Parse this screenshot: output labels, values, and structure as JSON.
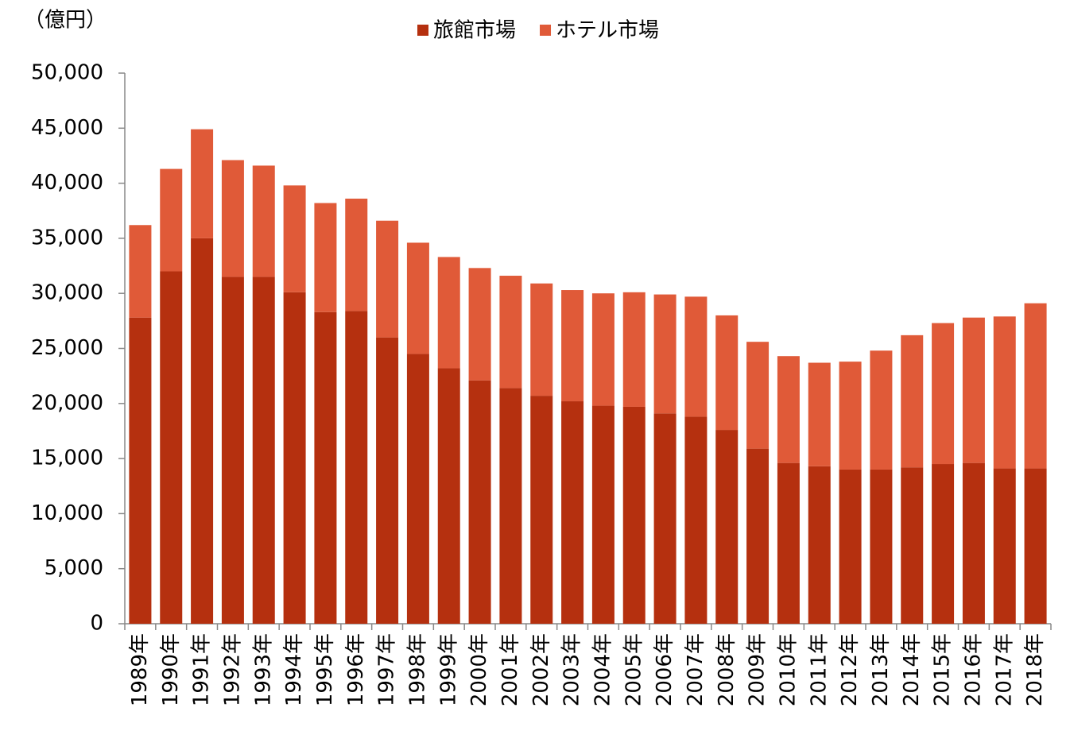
{
  "chart_data": {
    "type": "stacked_bar",
    "y_label": "（億円）",
    "categories": [
      "1989年",
      "1990年",
      "1991年",
      "1992年",
      "1993年",
      "1994年",
      "1995年",
      "1996年",
      "1997年",
      "1998年",
      "1999年",
      "2000年",
      "2001年",
      "2002年",
      "2003年",
      "2004年",
      "2005年",
      "2006年",
      "2007年",
      "2008年",
      "2009年",
      "2010年",
      "2011年",
      "2012年",
      "2013年",
      "2014年",
      "2015年",
      "2016年",
      "2017年",
      "2018年"
    ],
    "series": [
      {
        "name": "旅館市場",
        "color": "#b5300f",
        "values": [
          27800,
          32000,
          35000,
          31500,
          31500,
          30100,
          28300,
          28400,
          26000,
          24500,
          23200,
          22100,
          21400,
          20700,
          20200,
          19800,
          19700,
          19100,
          18800,
          17600,
          15900,
          14600,
          14300,
          14000,
          14000,
          14200,
          14500,
          14600,
          14100,
          14100
        ]
      },
      {
        "name": "ホテル市場",
        "color": "#e05a38",
        "values": [
          8400,
          9300,
          9900,
          10600,
          10100,
          9700,
          9900,
          10200,
          10600,
          10100,
          10100,
          10200,
          10200,
          10200,
          10100,
          10200,
          10400,
          10800,
          10900,
          10400,
          9700,
          9700,
          9400,
          9800,
          10800,
          12000,
          12800,
          13200,
          13800,
          15000
        ]
      }
    ],
    "ylim": [
      0,
      50000
    ],
    "yticks": [
      0,
      {
        "value": 5000,
        "label": "5,000"
      },
      {
        "value": 10000,
        "label": "10,000"
      },
      {
        "value": 15000,
        "label": "15,000"
      },
      {
        "value": 20000,
        "label": "20,000"
      },
      {
        "value": 25000,
        "label": "25,000"
      },
      {
        "value": 30000,
        "label": "30,000"
      },
      {
        "value": 35000,
        "label": "35,000"
      },
      {
        "value": 40000,
        "label": "40,000"
      },
      {
        "value": 45000,
        "label": "45,000"
      },
      {
        "value": 50000,
        "label": "50,000"
      }
    ],
    "grid": false,
    "legend": "top"
  }
}
